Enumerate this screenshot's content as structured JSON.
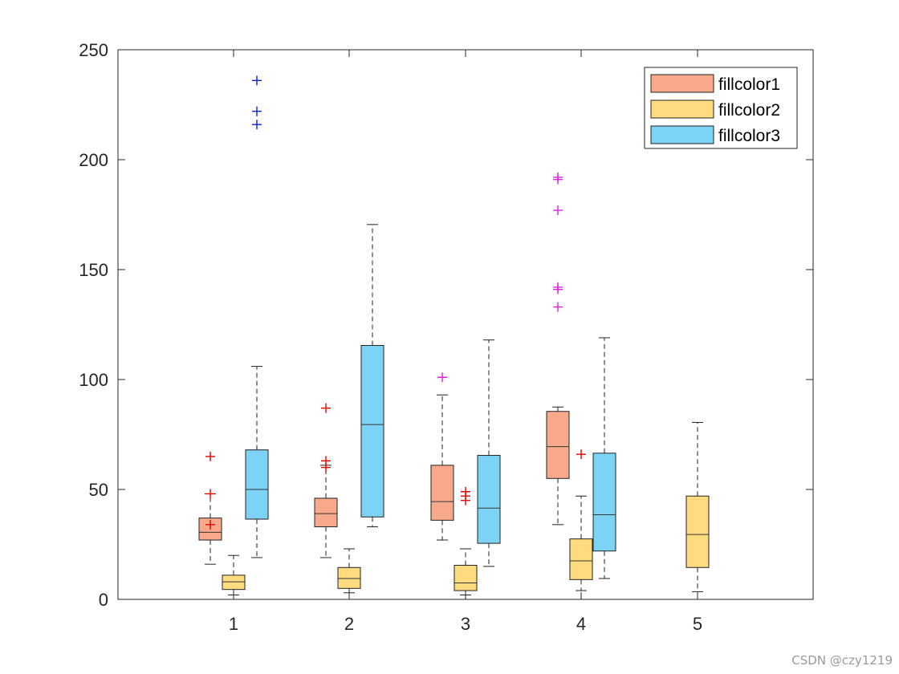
{
  "chart_data": {
    "type": "box",
    "title": "",
    "xlabel": "",
    "ylabel": "",
    "categories": [
      "1",
      "2",
      "3",
      "4",
      "5"
    ],
    "ylim": [
      0,
      250
    ],
    "yticks": [
      "0",
      "50",
      "100",
      "150",
      "200",
      "250"
    ],
    "grid": false,
    "legend_position": "top-right",
    "series": [
      {
        "name": "fillcolor1",
        "fill": "#F8A98B",
        "outlier_color": "#E00000",
        "boxes": [
          {
            "category": "1",
            "low": 16,
            "q1": 27,
            "median": 30.5,
            "q3": 37,
            "high": 48,
            "outliers": [
              34,
              48,
              65
            ]
          },
          {
            "category": "2",
            "low": 19,
            "q1": 33,
            "median": 39,
            "q3": 46,
            "high": 61,
            "outliers": [
              60,
              63,
              87
            ]
          },
          {
            "category": "3",
            "low": 27,
            "q1": 36,
            "median": 44.5,
            "q3": 61,
            "high": 93,
            "outliers": [
              101
            ]
          },
          {
            "category": "4",
            "low": 34,
            "q1": 55,
            "median": 69.5,
            "q3": 85.5,
            "high": 87.5,
            "outliers": [
              133,
              141,
              142,
              177,
              191,
              192
            ]
          },
          {
            "category": "5",
            "low": 0,
            "q1": 0,
            "median": 0,
            "q3": 0,
            "high": 0,
            "outliers": []
          }
        ]
      },
      {
        "name": "fillcolor2",
        "fill": "#FFDB80",
        "outlier_color": "#E00000",
        "boxes": [
          {
            "category": "1",
            "low": 2,
            "q1": 4.5,
            "median": 8,
            "q3": 11,
            "high": 20,
            "outliers": []
          },
          {
            "category": "2",
            "low": 3,
            "q1": 5,
            "median": 9.5,
            "q3": 14.5,
            "high": 23,
            "outliers": []
          },
          {
            "category": "3",
            "low": 2,
            "q1": 4,
            "median": 7.5,
            "q3": 15.5,
            "high": 23,
            "outliers": [
              45,
              47,
              49
            ]
          },
          {
            "category": "4",
            "low": 4,
            "q1": 9,
            "median": 17.5,
            "q3": 27.5,
            "high": 47,
            "outliers": [
              66
            ]
          },
          {
            "category": "5",
            "low": 3.5,
            "q1": 14.5,
            "median": 29.5,
            "q3": 47,
            "high": 80.5,
            "outliers": []
          }
        ]
      },
      {
        "name": "fillcolor3",
        "fill": "#7DD3F5",
        "outlier_color": "#1020D0",
        "boxes": [
          {
            "category": "1",
            "low": 19,
            "q1": 36.5,
            "median": 50,
            "q3": 68,
            "high": 106,
            "outliers": [
              216,
              222,
              236
            ]
          },
          {
            "category": "2",
            "low": 33,
            "q1": 37.5,
            "median": 79.5,
            "q3": 115.5,
            "high": 170.5,
            "outliers": []
          },
          {
            "category": "3",
            "low": 15,
            "q1": 25.5,
            "median": 41.5,
            "q3": 65.5,
            "high": 118,
            "outliers": []
          },
          {
            "category": "4",
            "low": 9.5,
            "q1": 22,
            "median": 38.5,
            "q3": 66.5,
            "high": 119,
            "outliers": []
          },
          {
            "category": "5",
            "low": 0,
            "q1": 0,
            "median": 0,
            "q3": 0,
            "high": 0,
            "outliers": []
          }
        ]
      }
    ]
  },
  "watermark": "CSDN @czy1219"
}
